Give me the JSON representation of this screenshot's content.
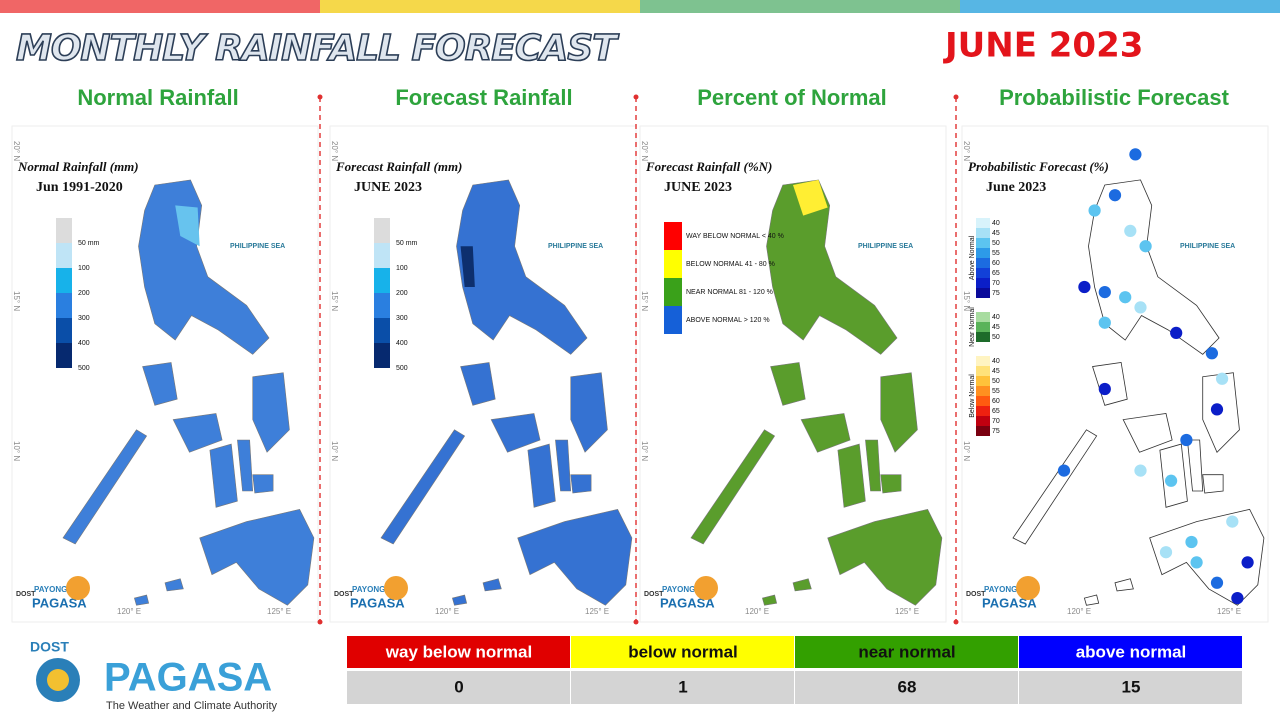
{
  "header": {
    "title": "MONTHLY RAINFALL FORECAST",
    "period": "JUNE 2023"
  },
  "panels": [
    {
      "heading": "Normal Rainfall",
      "map_title": "Normal Rainfall (mm)",
      "map_subtitle": "Jun 1991-2020",
      "sea_label": "PHILIPPINE SEA",
      "lat_labels": [
        "20° N",
        "15° N",
        "10° N"
      ],
      "lon_labels": [
        "120° E",
        "125° E"
      ],
      "legend": [
        {
          "label": "50 mm",
          "color": "#dcdcdc"
        },
        {
          "label": "100",
          "color": "#bfe4f6"
        },
        {
          "label": "200",
          "color": "#17b2ea"
        },
        {
          "label": "300",
          "color": "#2a7fe0"
        },
        {
          "label": "400",
          "color": "#0a4ea8"
        },
        {
          "label": "500",
          "color": "#06296f"
        }
      ],
      "map_color": "#3e7fd9",
      "logo": "PAGASA"
    },
    {
      "heading": "Forecast Rainfall",
      "map_title": "Forecast Rainfall (mm)",
      "map_subtitle": "JUNE 2023",
      "sea_label": "PHILIPPINE SEA",
      "lat_labels": [
        "20° N",
        "15° N",
        "10° N"
      ],
      "lon_labels": [
        "120° E",
        "125° E"
      ],
      "legend": [
        {
          "label": "50 mm",
          "color": "#dcdcdc"
        },
        {
          "label": "100",
          "color": "#bfe4f6"
        },
        {
          "label": "200",
          "color": "#17b2ea"
        },
        {
          "label": "300",
          "color": "#2a7fe0"
        },
        {
          "label": "400",
          "color": "#0a4ea8"
        },
        {
          "label": "500",
          "color": "#06296f"
        }
      ],
      "map_color": "#3572d2",
      "logo": "PAGASA"
    },
    {
      "heading": "Percent of Normal",
      "map_title": "Forecast Rainfall (%N)",
      "map_subtitle": "JUNE 2023",
      "sea_label": "PHILIPPINE SEA",
      "lat_labels": [
        "20° N",
        "15° N",
        "10° N"
      ],
      "lon_labels": [
        "120° E",
        "125° E"
      ],
      "legend": [
        {
          "label": "WAY BELOW NORMAL < 40 %",
          "color": "#ff0000"
        },
        {
          "label": "BELOW NORMAL 41 - 80 %",
          "color": "#ffff00"
        },
        {
          "label": "NEAR NORMAL 81 - 120 %",
          "color": "#3aa11a"
        },
        {
          "label": "ABOVE NORMAL > 120 %",
          "color": "#1560d8"
        }
      ],
      "map_color": "#5a9d2c",
      "logo": "PAGASA"
    },
    {
      "heading": "Probabilistic Forecast",
      "map_title": "Probabilistic Forecast (%)",
      "map_subtitle": "June 2023",
      "sea_label": "PHILIPPINE SEA",
      "lat_labels": [
        "20° N",
        "15° N",
        "10° N"
      ],
      "lon_labels": [
        "120° E",
        "125° E"
      ],
      "legend_groups": [
        {
          "title": "Above Normal",
          "items": [
            {
              "label": "40",
              "color": "#d8f3fb"
            },
            {
              "label": "45",
              "color": "#a7e1f6"
            },
            {
              "label": "50",
              "color": "#5cc4f0"
            },
            {
              "label": "55",
              "color": "#2d9ae8"
            },
            {
              "label": "60",
              "color": "#1c6be0"
            },
            {
              "label": "65",
              "color": "#1240d8"
            },
            {
              "label": "70",
              "color": "#0b1ec8"
            },
            {
              "label": "75",
              "color": "#0a0a9a"
            }
          ]
        },
        {
          "title": "Near Normal",
          "items": [
            {
              "label": "40",
              "color": "#a8dca0"
            },
            {
              "label": "45",
              "color": "#5ab35a"
            },
            {
              "label": "50",
              "color": "#1d6b2a"
            }
          ]
        },
        {
          "title": "Below Normal",
          "items": [
            {
              "label": "40",
              "color": "#fff4c2"
            },
            {
              "label": "45",
              "color": "#ffe27a"
            },
            {
              "label": "50",
              "color": "#ffc23a"
            },
            {
              "label": "55",
              "color": "#ff9020"
            },
            {
              "label": "60",
              "color": "#ff5a10"
            },
            {
              "label": "65",
              "color": "#ee2010"
            },
            {
              "label": "70",
              "color": "#c00010"
            },
            {
              "label": "75",
              "color": "#7a0010"
            }
          ]
        }
      ],
      "map_color": "#ffffff",
      "logo": "PAGASA"
    }
  ],
  "logo_small": {
    "top": "DOST",
    "mid": "PAYONG"
  },
  "summary": {
    "headers": [
      "way below normal",
      "below normal",
      "near normal",
      "above normal"
    ],
    "colors": [
      "#e00000",
      "#ffff00",
      "#33a000",
      "#0000ff"
    ],
    "values": [
      0,
      1,
      68,
      15
    ]
  },
  "logo": {
    "top": "DOST",
    "name": "PAGASA",
    "tagline": "The Weather and Climate Authority"
  }
}
